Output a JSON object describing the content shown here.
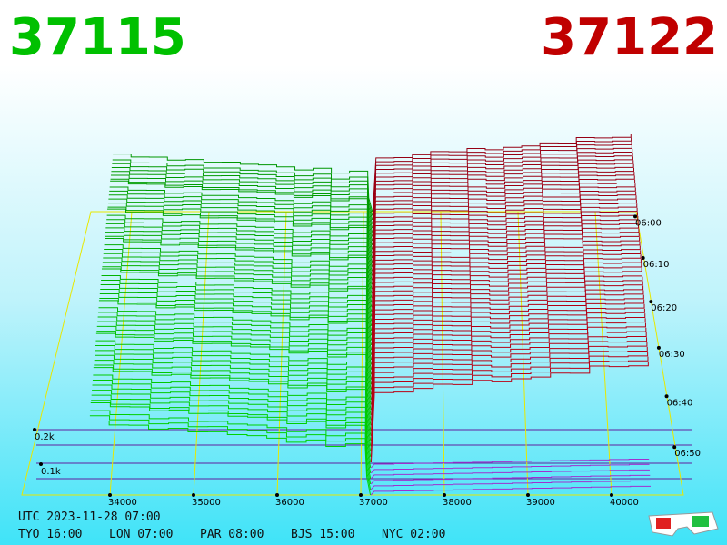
{
  "bid_price": 37115,
  "ask_price": 37122,
  "price_axis": [
    34000,
    35000,
    36000,
    37000,
    38000,
    39000,
    40000
  ],
  "time_axis": [
    "06:00",
    "06:10",
    "06:20",
    "06:30",
    "06:40",
    "06:50"
  ],
  "depth_axis": [
    "0.2k",
    "0.1k"
  ],
  "clock": {
    "utc": "UTC 2023-11-28 07:00",
    "cities": [
      "TYO 16:00",
      "LON 07:00",
      "PAR 08:00",
      "BJS 15:00",
      "NYC 02:00"
    ]
  }
}
